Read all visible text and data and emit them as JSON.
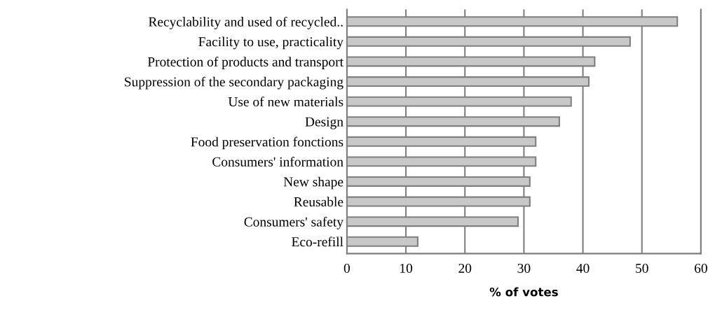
{
  "chart_data": {
    "type": "bar",
    "orientation": "horizontal",
    "xlabel": "% of votes",
    "categories": [
      "Recyclability and used of recycled..",
      "Facility to use, practicality",
      "Protection of products and transport",
      "Suppression of the secondary packaging",
      "Use of new materials",
      "Design",
      "Food preservation fonctions",
      "Consumers' information",
      "New shape",
      "Reusable",
      "Consumers' safety",
      "Eco-refill"
    ],
    "values": [
      56,
      48,
      42,
      41,
      38,
      36,
      32,
      32,
      31,
      31,
      29,
      12
    ],
    "color": "#c8c8c8",
    "xlim": [
      0,
      60
    ],
    "xticks": [
      0,
      10,
      20,
      30,
      40,
      50,
      60
    ],
    "grid": "x"
  }
}
